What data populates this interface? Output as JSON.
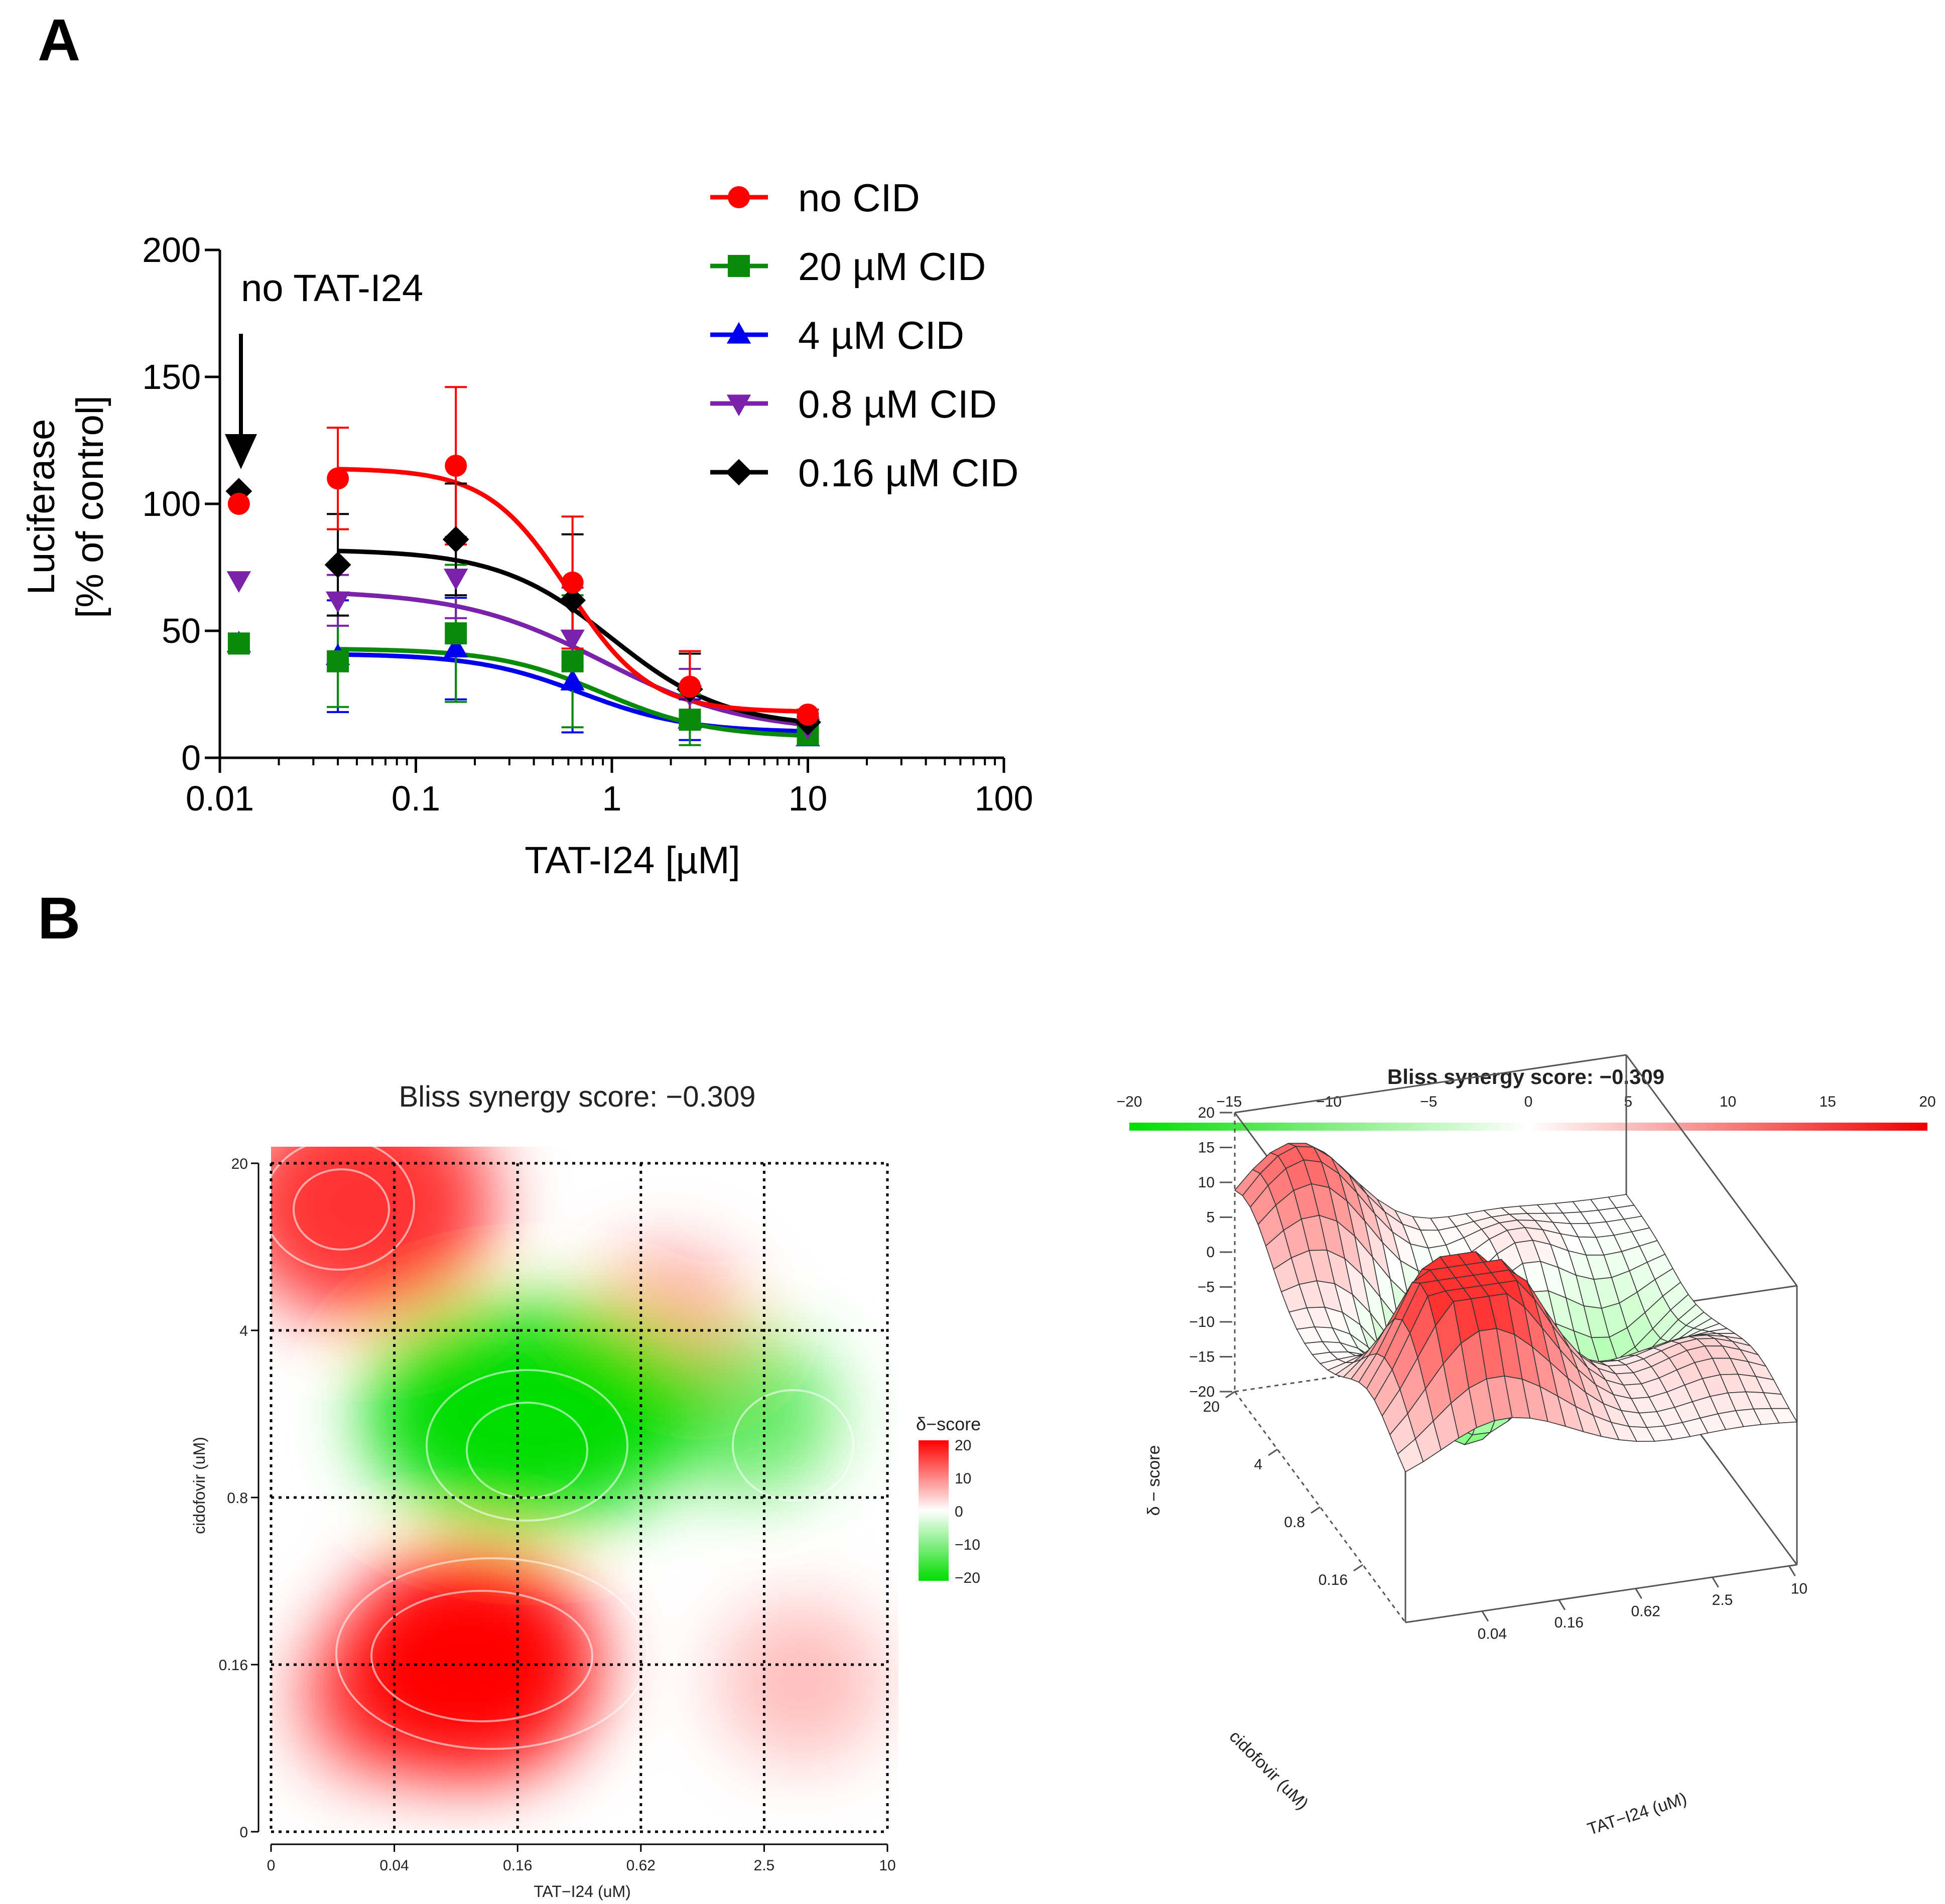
{
  "panels": {
    "a": "A",
    "b": "B"
  },
  "chart_data": [
    {
      "type": "line",
      "panel": "A",
      "title": "",
      "xlabel": "TAT-I24 [µM]",
      "ylabel_line1": "Luciferase",
      "ylabel_line2": "[% of control]",
      "xscale": "log",
      "xlim": [
        0.01,
        100
      ],
      "ylim": [
        0,
        200
      ],
      "xticks": [
        0.01,
        0.1,
        1,
        10,
        100
      ],
      "xtick_labels": [
        "0.01",
        "0.1",
        "1",
        "10",
        "100"
      ],
      "yticks": [
        0,
        50,
        100,
        150,
        200
      ],
      "ytick_labels": [
        "0",
        "50",
        "100",
        "150",
        "200"
      ],
      "annotation": "no TAT-I24",
      "x": [
        0.04,
        0.16,
        0.63,
        2.5,
        10
      ],
      "control_x": 0.0125,
      "legend_position": "top-right",
      "series": [
        {
          "name": "no CID",
          "color": "#ff0000",
          "marker": "circle",
          "control": 100,
          "values": [
            110,
            115,
            69,
            28,
            17
          ],
          "errors": [
            20,
            31,
            26,
            14,
            2
          ],
          "fit": {
            "top": 114,
            "bottom": 18,
            "ec50": 0.6,
            "hill": 2.1
          }
        },
        {
          "name": "20 µM CID",
          "color": "#0a8a0a",
          "marker": "square",
          "control": 45,
          "values": [
            38,
            49,
            38,
            15,
            9
          ],
          "errors": [
            18,
            27,
            26,
            10,
            2
          ],
          "fit": {
            "top": 43,
            "bottom": 8,
            "ec50": 0.9,
            "hill": 1.6
          }
        },
        {
          "name": "4 µM CID",
          "color": "#0000ee",
          "marker": "triangle-up",
          "control": 45,
          "values": [
            40,
            43,
            30,
            15,
            8
          ],
          "errors": [
            22,
            20,
            20,
            8,
            2
          ],
          "fit": {
            "top": 41,
            "bottom": 10,
            "ec50": 0.7,
            "hill": 1.6
          }
        },
        {
          "name": "0.8 µM CID",
          "color": "#7a22aa",
          "marker": "triangle-down",
          "control": 70,
          "values": [
            62,
            71,
            47,
            25,
            12
          ],
          "errors": [
            10,
            16,
            20,
            10,
            2
          ],
          "fit": {
            "top": 66,
            "bottom": 10,
            "ec50": 0.9,
            "hill": 1.2
          }
        },
        {
          "name": "0.16 µM CID",
          "color": "#000000",
          "marker": "diamond",
          "control": 105,
          "values": [
            76,
            86,
            62,
            27,
            14
          ],
          "errors": [
            20,
            22,
            26,
            14,
            2
          ],
          "fit": {
            "top": 82,
            "bottom": 12,
            "ec50": 1.0,
            "hill": 1.5
          }
        }
      ]
    },
    {
      "type": "heatmap",
      "panel": "B",
      "title": "Bliss synergy score: −0.309",
      "xlabel": "TAT−I24 (uM)",
      "ylabel": "cidofovir (uM)",
      "x_labels": [
        "0",
        "0.04",
        "0.16",
        "0.62",
        "2.5",
        "10"
      ],
      "y_labels": [
        "0",
        "0.16",
        "0.8",
        "4",
        "20"
      ],
      "legend_title": "δ−score",
      "legend_ticks": [
        "20",
        "10",
        "0",
        "−10",
        "−20"
      ],
      "range": [
        -20,
        20
      ],
      "colors": {
        "positive": "#ff0000",
        "neutral": "#ffffff",
        "negative": "#00dd00"
      },
      "hotspots": [
        {
          "x": 0.75,
          "y": 3.75,
          "value": 16
        },
        {
          "x": 3.2,
          "y": 3.0,
          "value": 8
        },
        {
          "x": 2.1,
          "y": 2.5,
          "value": -20
        },
        {
          "x": 3.9,
          "y": 2.5,
          "value": -12
        },
        {
          "x": 1.6,
          "y": 1.0,
          "value": 20
        },
        {
          "x": 0.9,
          "y": 0.8,
          "value": 12
        },
        {
          "x": 4.3,
          "y": 0.9,
          "value": 5
        }
      ]
    },
    {
      "type": "surface",
      "panel": "B",
      "title": "Bliss synergy score: −0.309",
      "colorbar_ticks": [
        "−20",
        "−15",
        "−10",
        "−5",
        "0",
        "5",
        "10",
        "15",
        "20"
      ],
      "zlabel": "δ − score",
      "zticks": [
        "20",
        "15",
        "10",
        "5",
        "0",
        "−5",
        "−10",
        "−15",
        "−20"
      ],
      "x_axis_label": "TAT−I24 (uM)",
      "x_ticks": [
        "0.04",
        "0.16",
        "0.62",
        "2.5",
        "10"
      ],
      "y_axis_label": "cidofovir (uM)",
      "y_ticks": [
        "20",
        "4",
        "0.8",
        "0.16"
      ]
    }
  ]
}
